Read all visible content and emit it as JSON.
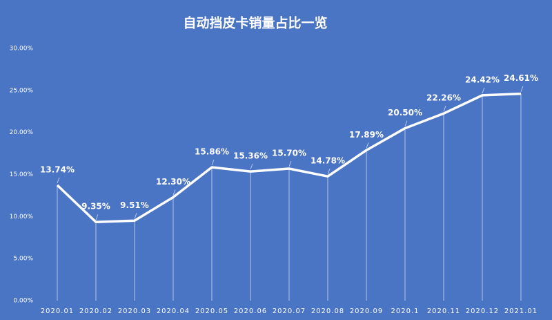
{
  "chart_data": {
    "type": "line",
    "title": "自动挡皮卡销量占比一览",
    "categories": [
      "2020.01",
      "2020.02",
      "2020.03",
      "2020.04",
      "2020.05",
      "2020.06",
      "2020.07",
      "2020.08",
      "2020.09",
      "2020.1",
      "2020.11",
      "2020.12",
      "2021.01"
    ],
    "values": [
      13.74,
      9.35,
      9.51,
      12.3,
      15.86,
      15.36,
      15.7,
      14.78,
      17.89,
      20.5,
      22.26,
      24.42,
      24.61
    ],
    "value_labels": [
      "13.74%",
      "9.35%",
      "9.51%",
      "12.30%",
      "15.86%",
      "15.36%",
      "15.70%",
      "14.78%",
      "17.89%",
      "20.50%",
      "22.26%",
      "24.42%",
      "24.61%"
    ],
    "color": "#ffffff",
    "ylim": [
      0,
      30
    ],
    "yticks": [
      {
        "value": 0,
        "label": "0.00%"
      },
      {
        "value": 5,
        "label": "5.00%"
      },
      {
        "value": 10,
        "label": "10.00%"
      },
      {
        "value": 15,
        "label": "15.00%"
      },
      {
        "value": 20,
        "label": "20.00%"
      },
      {
        "value": 25,
        "label": "25.00%"
      },
      {
        "value": 30,
        "label": "30.00%"
      }
    ]
  }
}
